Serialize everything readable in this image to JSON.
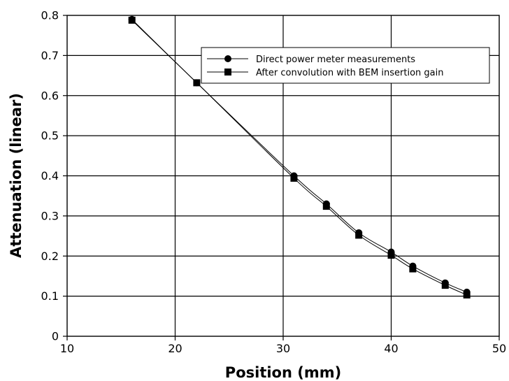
{
  "chart_data": {
    "type": "line",
    "title": "",
    "xlabel": "Position (mm)",
    "ylabel": "Attenuation (linear)",
    "xlim": [
      10,
      50
    ],
    "ylim": [
      0,
      0.8
    ],
    "xticks": [
      "10",
      "20",
      "30",
      "40",
      "50"
    ],
    "yticks": [
      "0",
      "0.1",
      "0.2",
      "0.3",
      "0.4",
      "0.5",
      "0.6",
      "0.7",
      "0.8"
    ],
    "grid": true,
    "legend_position": "top-right",
    "series": [
      {
        "name": "Direct power meter measurements",
        "marker": "circle",
        "color": "#000000",
        "x": [
          16,
          22,
          31,
          34,
          37,
          40,
          42,
          45,
          47
        ],
        "y": [
          0.79,
          0.632,
          0.4,
          0.33,
          0.258,
          0.21,
          0.175,
          0.133,
          0.11
        ]
      },
      {
        "name": "After convolution with BEM insertion gain",
        "marker": "square",
        "color": "#000000",
        "x": [
          16,
          22,
          31,
          34,
          37,
          40,
          42,
          45,
          47
        ],
        "y": [
          0.788,
          0.632,
          0.394,
          0.324,
          0.252,
          0.202,
          0.168,
          0.127,
          0.103
        ]
      }
    ]
  }
}
